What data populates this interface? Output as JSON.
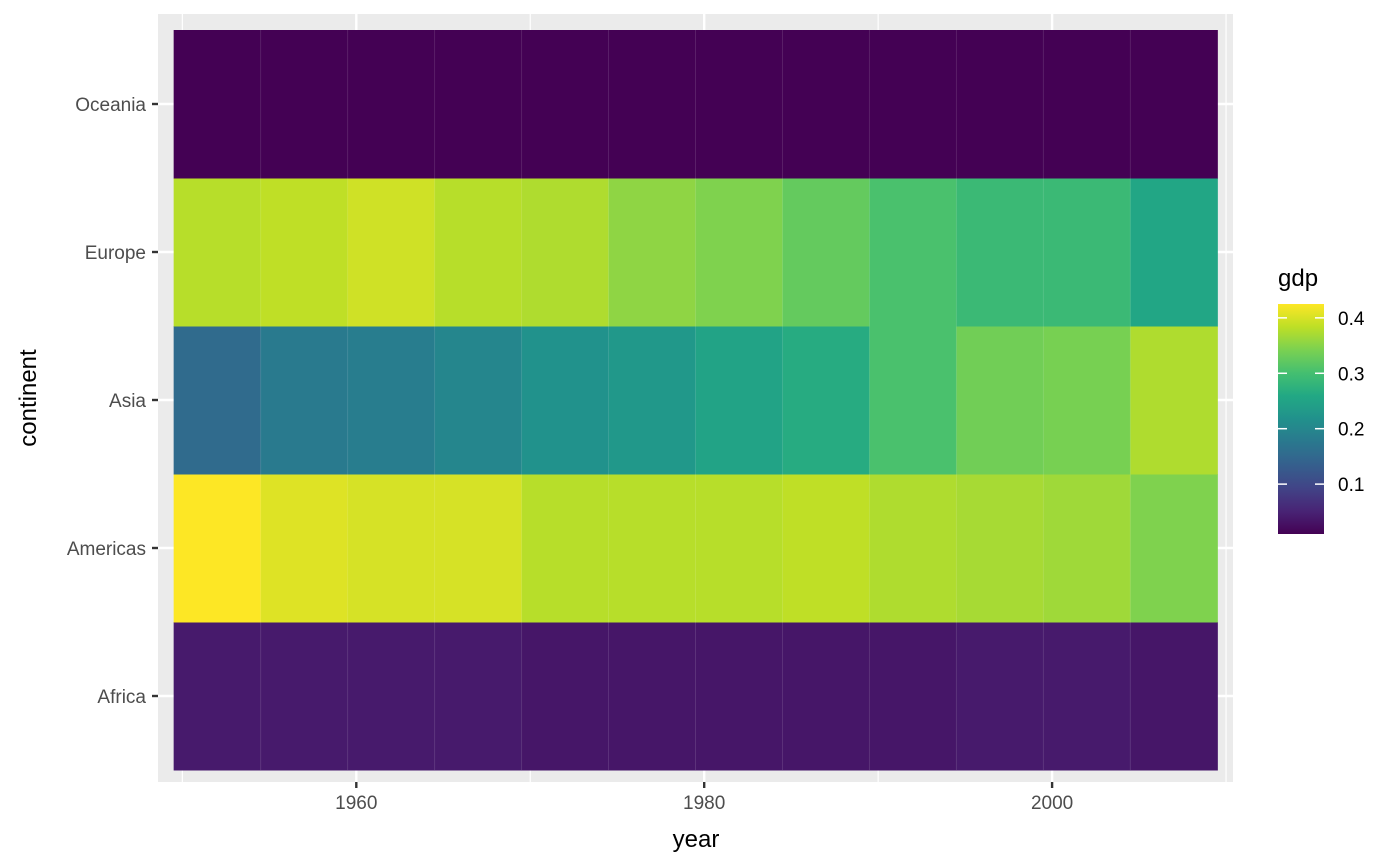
{
  "chart_data": {
    "type": "heatmap",
    "xlabel": "year",
    "ylabel": "continent",
    "x_ticks": [
      1960,
      1980,
      2000
    ],
    "categories_x": [
      1952,
      1957,
      1962,
      1967,
      1972,
      1977,
      1982,
      1987,
      1992,
      1997,
      2002,
      2007
    ],
    "categories_y": [
      "Africa",
      "Americas",
      "Asia",
      "Europe",
      "Oceania"
    ],
    "xlim": [
      1948.6,
      2010.4
    ],
    "values": {
      "Oceania": [
        0.01,
        0.01,
        0.01,
        0.01,
        0.01,
        0.01,
        0.01,
        0.01,
        0.01,
        0.01,
        0.01,
        0.01
      ],
      "Europe": [
        0.38,
        0.385,
        0.395,
        0.38,
        0.375,
        0.355,
        0.345,
        0.325,
        0.305,
        0.29,
        0.29,
        0.255
      ],
      "Asia": [
        0.155,
        0.18,
        0.185,
        0.2,
        0.22,
        0.23,
        0.25,
        0.265,
        0.305,
        0.335,
        0.34,
        0.375
      ],
      "Americas": [
        0.425,
        0.405,
        0.4,
        0.4,
        0.38,
        0.38,
        0.38,
        0.385,
        0.375,
        0.37,
        0.365,
        0.345
      ],
      "Africa": [
        0.04,
        0.04,
        0.04,
        0.04,
        0.035,
        0.035,
        0.035,
        0.035,
        0.035,
        0.04,
        0.04,
        0.035
      ]
    },
    "color_scale": "viridis",
    "legend": {
      "title": "gdp",
      "position": "right",
      "range": [
        0.01,
        0.425
      ],
      "ticks": [
        {
          "value": 0.1,
          "label": "0.1"
        },
        {
          "value": 0.2,
          "label": "0.2"
        },
        {
          "value": 0.3,
          "label": "0.3"
        },
        {
          "value": 0.4,
          "label": "0.4"
        }
      ]
    },
    "panel_background": "#ebebeb",
    "grid_color": "#ffffff",
    "grid": true
  }
}
